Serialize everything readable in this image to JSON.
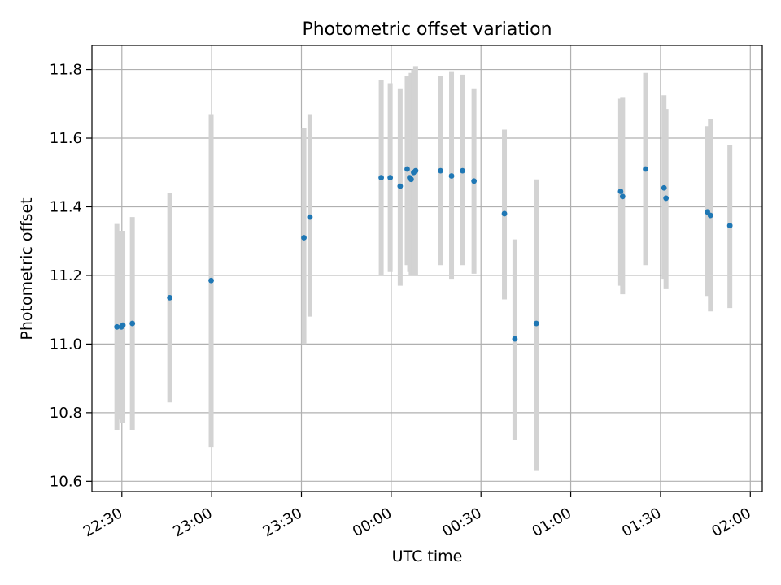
{
  "chart_data": {
    "type": "scatter",
    "title": "Photometric offset variation",
    "xlabel": "UTC time",
    "ylabel": "Photometric offset",
    "x_unit": "UTC time (HH:MM, crossing midnight)",
    "xlim": [
      "22:20",
      "02:04"
    ],
    "ylim": [
      10.57,
      11.87
    ],
    "x_ticks": [
      "22:30",
      "23:00",
      "23:30",
      "00:00",
      "00:30",
      "01:00",
      "01:30",
      "02:00"
    ],
    "y_ticks": [
      10.6,
      10.8,
      11.0,
      11.2,
      11.4,
      11.6,
      11.8
    ],
    "y_tick_labels": [
      "10.6",
      "10.8",
      "11.0",
      "11.2",
      "11.4",
      "11.6",
      "11.8"
    ],
    "grid": true,
    "legend": "none",
    "colors": {
      "points": "#1f77b4",
      "error_bars": "#d3d3d3",
      "grid": "#b0b0b0",
      "axes": "#000000"
    },
    "series": [
      {
        "points": [
          {
            "x": "22:28:20",
            "y": 11.05,
            "ymin": 10.75,
            "ymax": 11.35
          },
          {
            "x": "22:29:50",
            "y": 11.05,
            "ymin": 10.78,
            "ymax": 11.33
          },
          {
            "x": "22:30:20",
            "y": 11.055,
            "ymin": 10.77,
            "ymax": 11.33
          },
          {
            "x": "22:33:30",
            "y": 11.06,
            "ymin": 10.75,
            "ymax": 11.37
          },
          {
            "x": "22:46:00",
            "y": 11.135,
            "ymin": 10.83,
            "ymax": 11.44
          },
          {
            "x": "22:59:50",
            "y": 11.185,
            "ymin": 10.7,
            "ymax": 11.67
          },
          {
            "x": "23:30:50",
            "y": 11.31,
            "ymin": 11.0,
            "ymax": 11.63
          },
          {
            "x": "23:32:50",
            "y": 11.37,
            "ymin": 11.08,
            "ymax": 11.67
          },
          {
            "x": "23:56:40",
            "y": 11.485,
            "ymin": 11.2,
            "ymax": 11.77
          },
          {
            "x": "23:59:40",
            "y": 11.485,
            "ymin": 11.21,
            "ymax": 11.76
          },
          {
            "x": "00:03:00",
            "y": 11.46,
            "ymin": 11.17,
            "ymax": 11.745
          },
          {
            "x": "00:05:20",
            "y": 11.51,
            "ymin": 11.23,
            "ymax": 11.78
          },
          {
            "x": "00:06:10",
            "y": 11.485,
            "ymin": 11.21,
            "ymax": 11.76
          },
          {
            "x": "00:06:40",
            "y": 11.48,
            "ymin": 11.2,
            "ymax": 11.79
          },
          {
            "x": "00:07:30",
            "y": 11.5,
            "ymin": 11.2,
            "ymax": 11.8
          },
          {
            "x": "00:08:10",
            "y": 11.505,
            "ymin": 11.2,
            "ymax": 11.81
          },
          {
            "x": "00:16:30",
            "y": 11.505,
            "ymin": 11.23,
            "ymax": 11.78
          },
          {
            "x": "00:20:10",
            "y": 11.49,
            "ymin": 11.19,
            "ymax": 11.795
          },
          {
            "x": "00:23:50",
            "y": 11.505,
            "ymin": 11.23,
            "ymax": 11.785
          },
          {
            "x": "00:27:40",
            "y": 11.475,
            "ymin": 11.205,
            "ymax": 11.745
          },
          {
            "x": "00:37:50",
            "y": 11.38,
            "ymin": 11.13,
            "ymax": 11.625
          },
          {
            "x": "00:41:20",
            "y": 11.015,
            "ymin": 10.72,
            "ymax": 11.305
          },
          {
            "x": "00:48:30",
            "y": 11.06,
            "ymin": 10.63,
            "ymax": 11.48
          },
          {
            "x": "01:16:40",
            "y": 11.445,
            "ymin": 11.17,
            "ymax": 11.715
          },
          {
            "x": "01:17:20",
            "y": 11.43,
            "ymin": 11.145,
            "ymax": 11.72
          },
          {
            "x": "01:25:00",
            "y": 11.51,
            "ymin": 11.23,
            "ymax": 11.79
          },
          {
            "x": "01:31:10",
            "y": 11.455,
            "ymin": 11.19,
            "ymax": 11.725
          },
          {
            "x": "01:31:50",
            "y": 11.425,
            "ymin": 11.16,
            "ymax": 11.685
          },
          {
            "x": "01:45:40",
            "y": 11.385,
            "ymin": 11.14,
            "ymax": 11.635
          },
          {
            "x": "01:46:40",
            "y": 11.375,
            "ymin": 11.095,
            "ymax": 11.655
          },
          {
            "x": "01:53:10",
            "y": 11.345,
            "ymin": 11.105,
            "ymax": 11.58
          }
        ]
      }
    ]
  }
}
